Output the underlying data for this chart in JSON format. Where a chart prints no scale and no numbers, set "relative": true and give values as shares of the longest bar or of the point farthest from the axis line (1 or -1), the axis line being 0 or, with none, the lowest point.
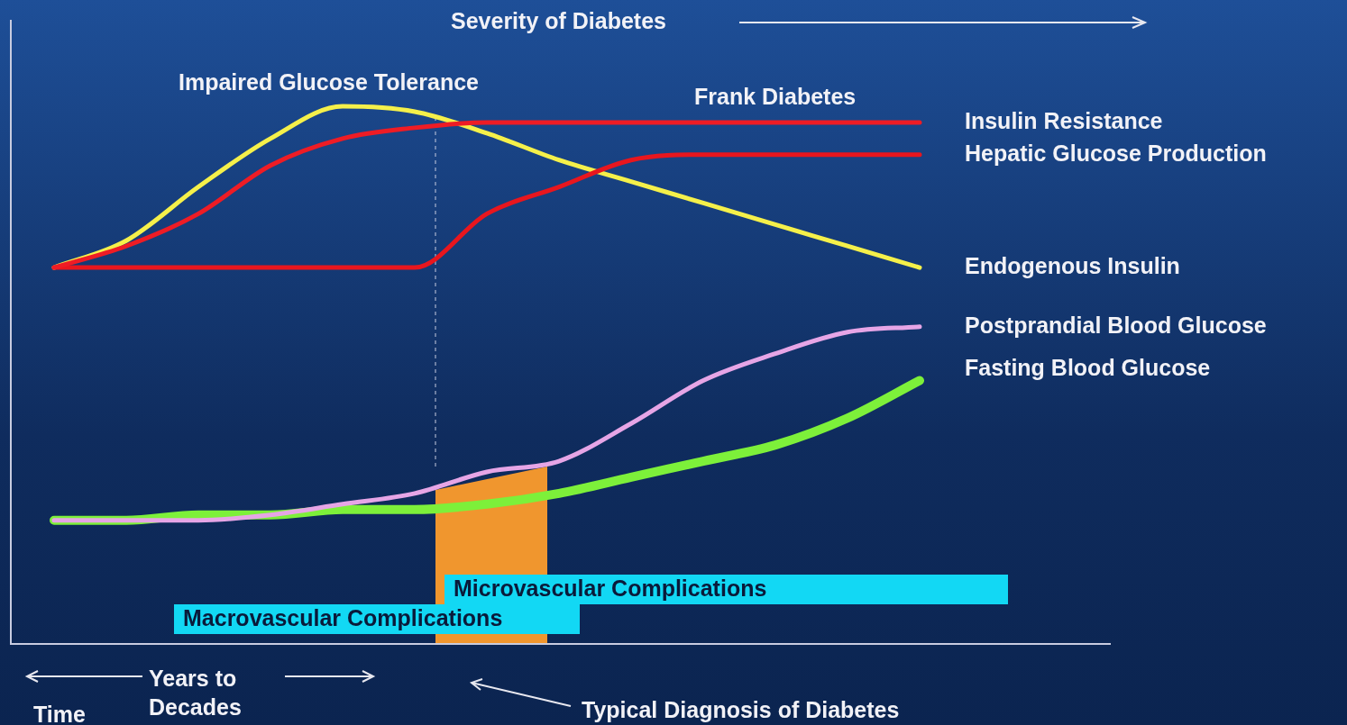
{
  "chart_data": {
    "type": "line",
    "title": "Severity of Diabetes",
    "relative": true,
    "marker": "none",
    "categories": [
      null,
      null,
      null,
      null,
      null,
      null,
      null,
      null,
      null,
      null,
      null,
      null,
      null
    ],
    "series": [
      {
        "name": "Insulin Resistance",
        "color": "#ee1c25",
        "values": [
          0.7,
          0.74,
          0.8,
          0.89,
          0.94,
          0.96,
          0.97,
          0.97,
          0.97,
          0.97,
          0.97,
          0.97,
          0.97
        ]
      },
      {
        "name": "Hepatic Glucose Production",
        "color": "#e8161e",
        "values": [
          0.7,
          0.7,
          0.7,
          0.7,
          0.7,
          0.7,
          0.8,
          0.85,
          0.9,
          0.91,
          0.91,
          0.91,
          0.91
        ]
      },
      {
        "name": "Endogenous Insulin",
        "color": "#f5f04a",
        "values": [
          0.7,
          0.75,
          0.85,
          0.94,
          1,
          0.99,
          0.95,
          0.9,
          0.86,
          0.82,
          0.78,
          0.74,
          0.7
        ]
      },
      {
        "name": "Postprandial Blood Glucose",
        "color": "#e6a5e6",
        "values": [
          0.23,
          0.23,
          0.23,
          0.24,
          0.26,
          0.28,
          0.32,
          0.34,
          0.41,
          0.49,
          0.54,
          0.58,
          0.59
        ]
      },
      {
        "name": "Fasting Blood Glucose",
        "color": "#7df03a",
        "values": [
          0.23,
          0.23,
          0.24,
          0.24,
          0.25,
          0.25,
          0.26,
          0.28,
          0.31,
          0.34,
          0.37,
          0.42,
          0.49
        ]
      }
    ],
    "annotations": [
      "Impaired Glucose Tolerance",
      "Frank Diabetes",
      "Microvascular Complications",
      "Macrovascular Complications",
      "Years to Decades",
      "Time",
      "Typical Diagnosis of Diabetes"
    ]
  }
}
